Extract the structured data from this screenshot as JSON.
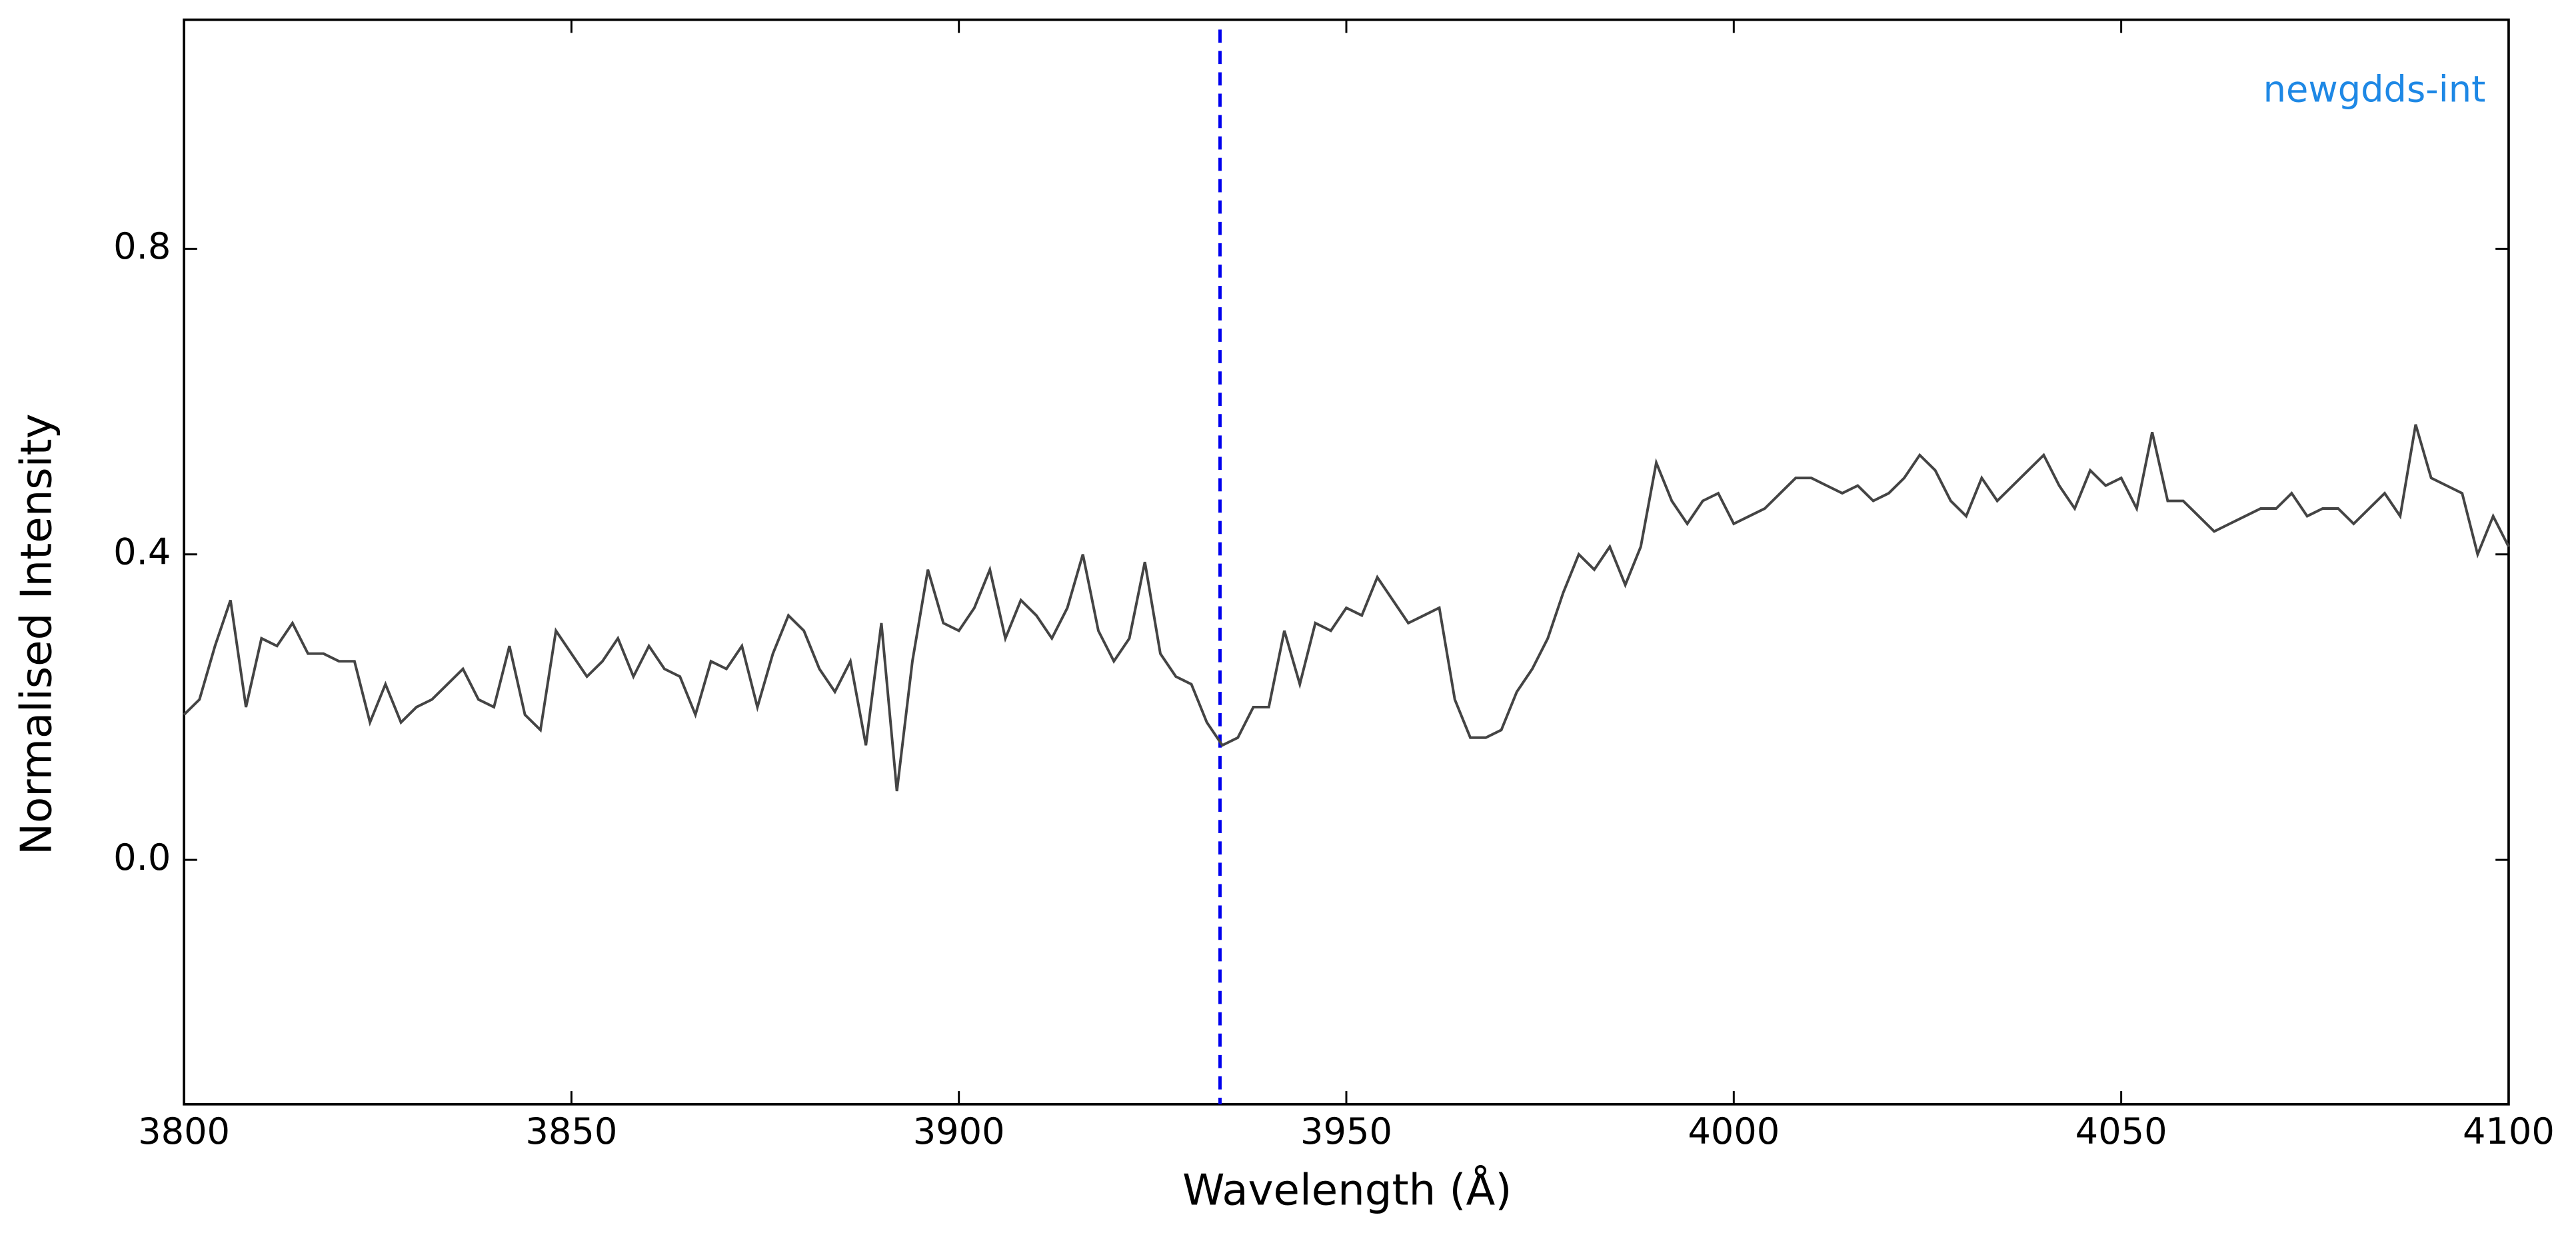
{
  "chart_data": {
    "type": "line",
    "xlabel": "Wavelength (Å)",
    "ylabel": "Normalised Intensity",
    "annotation": "newgdds-int",
    "annotation_color": "#1e88e5",
    "vline": 3933.7,
    "vline_color": "#0000ee",
    "xlim": [
      3800,
      4100
    ],
    "ylim": [
      -0.32,
      1.1
    ],
    "xticks": [
      3800,
      3850,
      3900,
      3950,
      4000,
      4050,
      4100
    ],
    "yticks": [
      {
        "value": 0,
        "label": "0.0"
      },
      0.4,
      0.8
    ],
    "series": [
      {
        "color": "#444444",
        "x": [
          3800,
          3802,
          3804,
          3806,
          3808,
          3810,
          3812,
          3814,
          3816,
          3818,
          3820,
          3822,
          3824,
          3826,
          3828,
          3830,
          3832,
          3834,
          3836,
          3838,
          3840,
          3842,
          3844,
          3846,
          3848,
          3850,
          3852,
          3854,
          3856,
          3858,
          3860,
          3862,
          3864,
          3866,
          3868,
          3870,
          3872,
          3874,
          3876,
          3878,
          3880,
          3882,
          3884,
          3886,
          3888,
          3890,
          3892,
          3894,
          3896,
          3898,
          3900,
          3902,
          3904,
          3906,
          3908,
          3910,
          3912,
          3914,
          3916,
          3918,
          3920,
          3922,
          3924,
          3926,
          3928,
          3930,
          3932,
          3934,
          3936,
          3938,
          3940,
          3942,
          3944,
          3946,
          3948,
          3950,
          3952,
          3954,
          3956,
          3958,
          3960,
          3962,
          3964,
          3966,
          3968,
          3970,
          3972,
          3974,
          3976,
          3978,
          3980,
          3982,
          3984,
          3986,
          3988,
          3990,
          3992,
          3994,
          3996,
          3998,
          4000,
          4002,
          4004,
          4006,
          4008,
          4010,
          4012,
          4014,
          4016,
          4018,
          4020,
          4022,
          4024,
          4026,
          4028,
          4030,
          4032,
          4034,
          4036,
          4038,
          4040,
          4042,
          4044,
          4046,
          4048,
          4050,
          4052,
          4054,
          4056,
          4058,
          4060,
          4062,
          4064,
          4066,
          4068,
          4070,
          4072,
          4074,
          4076,
          4078,
          4080,
          4082,
          4084,
          4086,
          4088,
          4090,
          4092,
          4094,
          4096,
          4098,
          4100
        ],
        "values": [
          0.19,
          0.21,
          0.28,
          0.34,
          0.2,
          0.29,
          0.28,
          0.31,
          0.27,
          0.27,
          0.26,
          0.26,
          0.18,
          0.23,
          0.18,
          0.2,
          0.21,
          0.23,
          0.25,
          0.21,
          0.2,
          0.28,
          0.19,
          0.17,
          0.3,
          0.27,
          0.24,
          0.26,
          0.29,
          0.24,
          0.28,
          0.25,
          0.24,
          0.19,
          0.26,
          0.25,
          0.28,
          0.2,
          0.27,
          0.32,
          0.3,
          0.25,
          0.22,
          0.26,
          0.15,
          0.31,
          0.09,
          0.26,
          0.38,
          0.31,
          0.3,
          0.33,
          0.38,
          0.29,
          0.34,
          0.32,
          0.29,
          0.33,
          0.4,
          0.3,
          0.26,
          0.29,
          0.39,
          0.27,
          0.24,
          0.23,
          0.18,
          0.15,
          0.16,
          0.2,
          0.2,
          0.3,
          0.23,
          0.31,
          0.3,
          0.33,
          0.32,
          0.37,
          0.34,
          0.31,
          0.32,
          0.33,
          0.21,
          0.16,
          0.16,
          0.17,
          0.22,
          0.25,
          0.29,
          0.35,
          0.4,
          0.38,
          0.41,
          0.36,
          0.41,
          0.52,
          0.47,
          0.44,
          0.47,
          0.48,
          0.44,
          0.45,
          0.46,
          0.48,
          0.5,
          0.5,
          0.49,
          0.48,
          0.49,
          0.47,
          0.48,
          0.5,
          0.53,
          0.51,
          0.47,
          0.45,
          0.5,
          0.47,
          0.49,
          0.51,
          0.53,
          0.49,
          0.46,
          0.51,
          0.49,
          0.5,
          0.46,
          0.56,
          0.47,
          0.47,
          0.45,
          0.43,
          0.44,
          0.45,
          0.46,
          0.46,
          0.48,
          0.45,
          0.46,
          0.46,
          0.44,
          0.46,
          0.48,
          0.45,
          0.57,
          0.5,
          0.49,
          0.48,
          0.4,
          0.45,
          0.41
        ]
      }
    ]
  }
}
